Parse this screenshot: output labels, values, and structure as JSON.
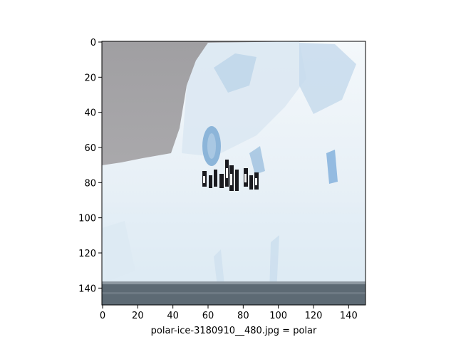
{
  "figure": {
    "image_caption": "polar-ice-3180910__480.jpg = polar",
    "xlim": [
      0,
      150
    ],
    "ylim": [
      150,
      0
    ],
    "x_ticks": [
      0,
      20,
      40,
      60,
      80,
      100,
      120,
      140
    ],
    "y_ticks": [
      0,
      20,
      40,
      60,
      80,
      100,
      120,
      140
    ],
    "colors": {
      "sky": "#a3a2a5",
      "ice_light": "#eef3f7",
      "ice_mid": "#c9dcea",
      "ice_blue": "#8fb8da",
      "water": "#5a6670"
    },
    "content": "iceberg-with-penguins"
  }
}
